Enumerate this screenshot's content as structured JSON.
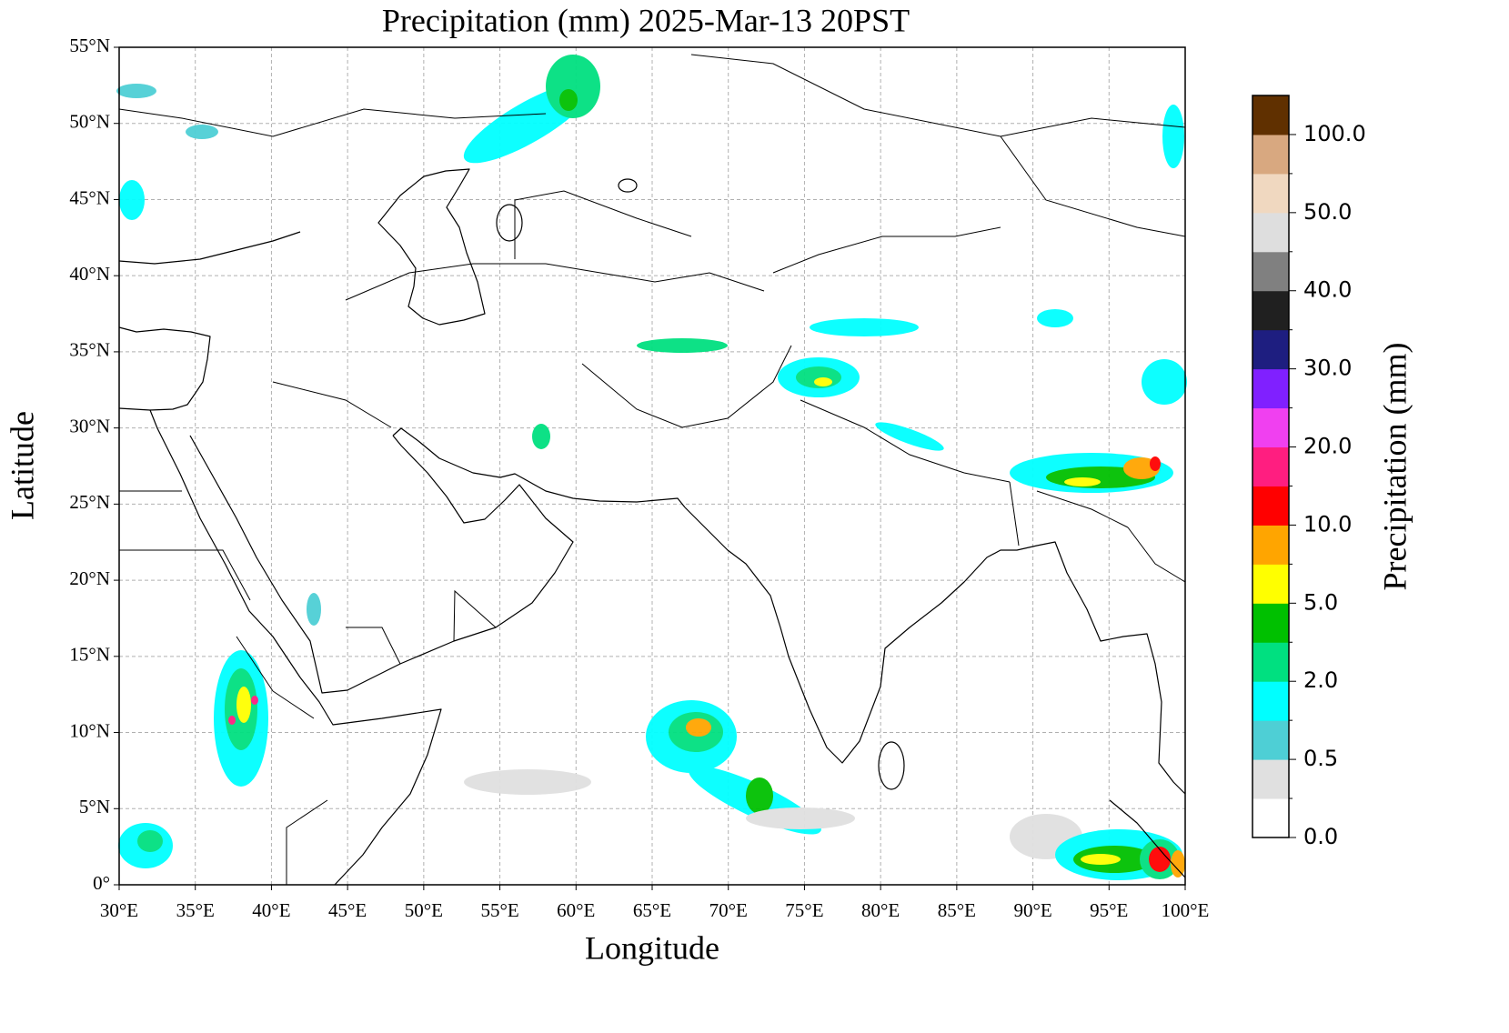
{
  "title": "Precipitation (mm)  2025-Mar-13 20PST",
  "x_label": "Longitude",
  "y_label": "Latitude",
  "xlim": [
    30,
    100
  ],
  "ylim": [
    0,
    55
  ],
  "xticks": [
    {
      "value": 30,
      "label": "30°E"
    },
    {
      "value": 35,
      "label": "35°E"
    },
    {
      "value": 40,
      "label": "40°E"
    },
    {
      "value": 45,
      "label": "45°E"
    },
    {
      "value": 50,
      "label": "50°E"
    },
    {
      "value": 55,
      "label": "55°E"
    },
    {
      "value": 60,
      "label": "60°E"
    },
    {
      "value": 65,
      "label": "65°E"
    },
    {
      "value": 70,
      "label": "70°E"
    },
    {
      "value": 75,
      "label": "75°E"
    },
    {
      "value": 80,
      "label": "80°E"
    },
    {
      "value": 85,
      "label": "85°E"
    },
    {
      "value": 90,
      "label": "90°E"
    },
    {
      "value": 95,
      "label": "95°E"
    },
    {
      "value": 100,
      "label": "100°E"
    }
  ],
  "yticks": [
    {
      "value": 0,
      "label": "0°"
    },
    {
      "value": 5,
      "label": "5°N"
    },
    {
      "value": 10,
      "label": "10°N"
    },
    {
      "value": 15,
      "label": "15°N"
    },
    {
      "value": 20,
      "label": "20°N"
    },
    {
      "value": 25,
      "label": "25°N"
    },
    {
      "value": 30,
      "label": "30°N"
    },
    {
      "value": 35,
      "label": "35°N"
    },
    {
      "value": 40,
      "label": "40°N"
    },
    {
      "value": 45,
      "label": "45°N"
    },
    {
      "value": 50,
      "label": "50°N"
    },
    {
      "value": 55,
      "label": "55°N"
    }
  ],
  "grid": true,
  "colorbar": {
    "label": "Precipitation (mm)",
    "colors": [
      "#ffffff",
      "#e0e0e0",
      "#4ecfd5",
      "#00ffff",
      "#00e080",
      "#00c000",
      "#ffff00",
      "#ffa500",
      "#ff0000",
      "#ff1e80",
      "#f040f0",
      "#8020ff",
      "#1e1e80",
      "#202020",
      "#808080",
      "#dedede",
      "#f0d8c0",
      "#d8a880",
      "#603000"
    ],
    "ticks": [
      {
        "value": 0,
        "label": "0.0"
      },
      {
        "value": 0.5,
        "label": "0.5"
      },
      {
        "value": 2,
        "label": "2.0"
      },
      {
        "value": 5,
        "label": "5.0"
      },
      {
        "value": 10,
        "label": "10.0"
      },
      {
        "value": 20,
        "label": "20.0"
      },
      {
        "value": 30,
        "label": "30.0"
      },
      {
        "value": 40,
        "label": "40.0"
      },
      {
        "value": 50,
        "label": "50.0"
      },
      {
        "value": 100,
        "label": "100.0"
      }
    ]
  }
}
